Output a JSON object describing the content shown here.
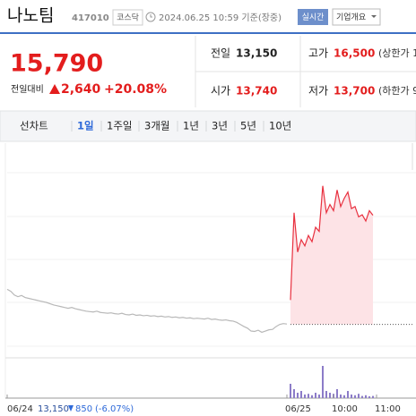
{
  "header": {
    "name": "나노팀",
    "code": "417010",
    "market": "코스닥",
    "datetime": "2024.06.25 10:59 기준(장중)",
    "realtime": "실시간",
    "company_info": "기업개요"
  },
  "price": {
    "current": "15,790",
    "change_label": "전일대비",
    "change": "2,640",
    "rate": "+20.08%"
  },
  "quote": {
    "rows": [
      [
        {
          "label": "전일",
          "value": "13,150"
        },
        {
          "label": "고가",
          "value": "16,500",
          "note": "(상한가 1"
        }
      ],
      [
        {
          "label": "시가",
          "value": "13,740"
        },
        {
          "label": "저가",
          "value": "13,700",
          "note": "(하한가 9"
        }
      ]
    ]
  },
  "tabs": [
    "선차트",
    "1일",
    "1주일",
    "3개월",
    "1년",
    "3년",
    "5년",
    "10년"
  ],
  "footer": {
    "prev_close": "13,150",
    "change": "850",
    "rate": "(-6.07%)"
  },
  "chart_data": {
    "type": "line",
    "categories": [
      "06/24",
      null,
      null,
      null,
      null,
      null,
      null,
      null,
      null,
      null,
      null,
      null,
      null,
      null,
      null,
      null,
      null,
      null,
      null,
      null,
      null,
      null,
      null,
      null,
      null,
      null,
      null,
      null,
      null,
      null,
      null,
      null,
      null,
      null,
      null,
      null,
      null,
      null,
      null,
      null,
      null,
      null,
      null,
      null,
      null,
      null,
      null,
      null,
      null,
      null,
      null,
      null,
      null,
      null,
      null,
      null,
      null,
      null,
      null,
      null,
      null,
      null,
      null,
      null,
      null,
      null,
      null,
      null,
      null,
      null,
      null,
      null,
      null,
      null,
      null,
      null,
      null,
      null,
      "06/25",
      null,
      null,
      null,
      null,
      null,
      null,
      null,
      null,
      null,
      null,
      null,
      null,
      "10:00",
      null,
      null,
      null,
      null,
      null,
      null,
      null,
      null,
      null,
      null,
      null,
      "11:00",
      null,
      null,
      null,
      null,
      null,
      null,
      null,
      null,
      null,
      null,
      null
    ],
    "ylim": [
      12450,
      17100
    ],
    "baseline": 13150,
    "series": [
      {
        "color": "#b8b8b8",
        "values": [
          14000,
          13950,
          13860,
          13820,
          13850,
          13800,
          13780,
          13760,
          13740,
          13720,
          13700,
          13680,
          13650,
          13620,
          13600,
          13580,
          13560,
          13540,
          13560,
          13530,
          13510,
          13490,
          13470,
          13460,
          13450,
          13470,
          13440,
          13430,
          13420,
          13430,
          13410,
          13400,
          13420,
          13390,
          13380,
          13400,
          13370,
          13380,
          13360,
          13370,
          13350,
          13360,
          13340,
          13350,
          13330,
          13340,
          13320,
          13330,
          13310,
          13320,
          13300,
          13310,
          13290,
          13300,
          13290,
          13280,
          13300,
          13270,
          13280,
          13260,
          13250,
          13260,
          13240,
          13230,
          13200,
          13150,
          13100,
          13060,
          12990,
          12980,
          13010,
          12960,
          12990,
          13020,
          13030,
          13100,
          13150,
          13170,
          13160,
          null,
          null,
          null,
          null,
          null,
          null,
          null,
          null,
          null,
          null,
          null,
          null,
          null,
          null,
          null,
          null,
          null,
          null,
          null,
          null,
          null,
          null,
          null,
          null,
          null,
          null,
          null,
          null,
          null,
          null,
          null,
          null,
          null,
          null,
          null,
          null
        ]
      },
      {
        "color": "#e8303f",
        "fill_color": "#fde3e6",
        "values": [
          null,
          null,
          null,
          null,
          null,
          null,
          null,
          null,
          null,
          null,
          null,
          null,
          null,
          null,
          null,
          null,
          null,
          null,
          null,
          null,
          null,
          null,
          null,
          null,
          null,
          null,
          null,
          null,
          null,
          null,
          null,
          null,
          null,
          null,
          null,
          null,
          null,
          null,
          null,
          null,
          null,
          null,
          null,
          null,
          null,
          null,
          null,
          null,
          null,
          null,
          null,
          null,
          null,
          null,
          null,
          null,
          null,
          null,
          null,
          null,
          null,
          null,
          null,
          null,
          null,
          null,
          null,
          null,
          null,
          null,
          null,
          null,
          null,
          null,
          null,
          null,
          null,
          null,
          null,
          13740,
          15850,
          14900,
          15200,
          15050,
          15300,
          15150,
          15500,
          15400,
          16500,
          15850,
          16050,
          15900,
          16400,
          16000,
          16200,
          16350,
          15950,
          16000,
          15750,
          15800,
          15650,
          15900,
          15790,
          null,
          null,
          null,
          null,
          null,
          null,
          null,
          null,
          null,
          null,
          null,
          null
        ]
      }
    ],
    "volume": {
      "color": "#8c7cc8",
      "ylim": [
        0,
        100
      ],
      "values": [
        null,
        null,
        null,
        null,
        null,
        null,
        null,
        null,
        null,
        null,
        null,
        null,
        null,
        null,
        null,
        null,
        null,
        null,
        null,
        null,
        null,
        null,
        null,
        null,
        null,
        null,
        null,
        null,
        null,
        null,
        null,
        null,
        null,
        null,
        null,
        null,
        null,
        null,
        null,
        null,
        null,
        null,
        null,
        null,
        null,
        null,
        null,
        null,
        null,
        null,
        null,
        null,
        null,
        null,
        null,
        null,
        null,
        null,
        null,
        null,
        null,
        null,
        null,
        null,
        null,
        null,
        null,
        null,
        null,
        null,
        null,
        null,
        null,
        null,
        null,
        null,
        null,
        null,
        null,
        40,
        25,
        15,
        20,
        10,
        12,
        8,
        15,
        10,
        90,
        20,
        15,
        12,
        25,
        10,
        8,
        20,
        10,
        8,
        12,
        6,
        8,
        5,
        6,
        null,
        null,
        null,
        null,
        null,
        null,
        null,
        null,
        null,
        null,
        null,
        null
      ]
    }
  }
}
